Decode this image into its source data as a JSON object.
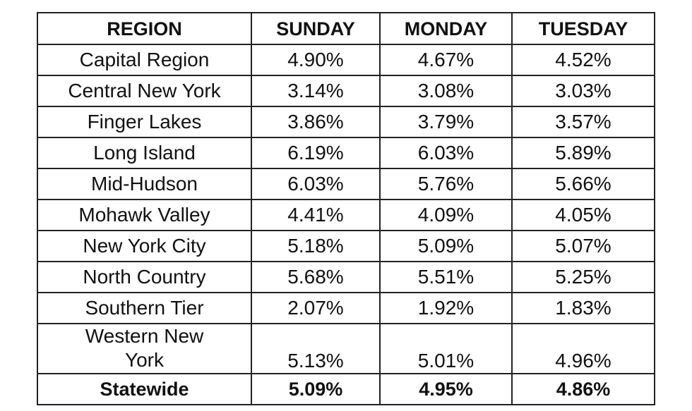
{
  "table": {
    "header": [
      "REGION",
      "SUNDAY",
      "MONDAY",
      "TUESDAY"
    ],
    "rows": [
      [
        "Capital Region",
        "4.90%",
        "4.67%",
        "4.52%"
      ],
      [
        "Central New York",
        "3.14%",
        "3.08%",
        "3.03%"
      ],
      [
        "Finger Lakes",
        "3.86%",
        "3.79%",
        "3.57%"
      ],
      [
        "Long Island",
        "6.19%",
        "6.03%",
        "5.89%"
      ],
      [
        "Mid-Hudson",
        "6.03%",
        "5.76%",
        "5.66%"
      ],
      [
        "Mohawk Valley",
        "4.41%",
        "4.09%",
        "4.05%"
      ],
      [
        "New York City",
        "5.18%",
        "5.09%",
        "5.07%"
      ],
      [
        "North Country",
        "5.68%",
        "5.51%",
        "5.25%"
      ],
      [
        "Southern Tier",
        "2.07%",
        "1.92%",
        "1.83%"
      ],
      [
        "Western New York",
        "5.13%",
        "5.01%",
        "4.96%"
      ],
      [
        "Statewide",
        "5.09%",
        "4.95%",
        "4.86%"
      ]
    ]
  }
}
